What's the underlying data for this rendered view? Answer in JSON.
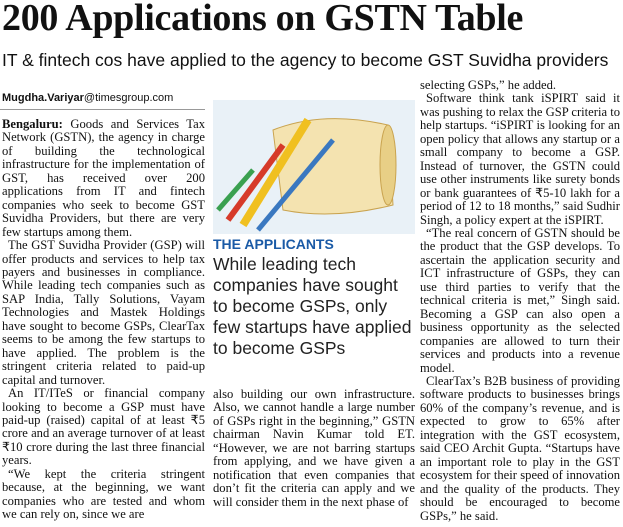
{
  "headline": "200 Applications on GSTN Table",
  "subheadline": "IT & fintech cos have applied to the agency to become GST Suvidha providers",
  "byline": {
    "name": "Mugdha.Variyar",
    "domain": "@timesgroup.com"
  },
  "dateline": "Bengaluru:",
  "columns": [
    [
      "Goods and Services Tax Network (GSTN), the agency in charge of building the technological infrastructure for the implementation of GST, has received over 200 applications from IT and fintech companies who seek to become GST Suvidha Providers, but there are very few startups among them.",
      "The GST Suvidha Provider (GSP) will offer products and services to help tax payers and businesses in compliance. While leading tech companies such as SAP India, Tally Solutions, Vayam Technologies and Mastek Holdings have sought to become GSPs, ClearTax seems to be among the few startups to have applied. The problem is the stringent criteria related to paid-up capital and turnover.",
      "An IT/ITeS or financial company looking to become a GSP must have paid-up (raised) capital of at least ₹5 crore and an average turnover of at least ₹10 crore during the last three financial years.",
      "“We kept the criteria stringent because, at the beginning, we want companies who are tested and whom we can rely on, since we are"
    ],
    [
      "also building our own infrastructure. Also, we cannot handle a large number of GSPs right in the beginning,” GSTN chairman Navin Kumar told ET. “However, we are not barring startups from applying, and we have given a notification that even companies that don’t fit the criteria can apply and we will consider them in the next phase of"
    ],
    [
      "selecting GSPs,” he added.",
      "Software think tank iSPIRT said it was pushing to relax the GSP criteria to help startups. “iSPIRT is looking for an open policy that allows any startup or a small company to become a GSP. Instead of turnover, the GSTN could use other instruments like surety bonds or bank guarantees of ₹5-10 lakh for a period of 12 to 18 months,” said Sudhir Singh, a policy expert at the iSPIRT.",
      "“The real concern of GSTN should be the product that the GSP develops. To ascertain the application security and ICT infrastructure of GSPs, they can use third parties to verify that the technical criteria is met,” Singh said. Becoming a GSP can also open a business opportunity as the selected companies are allowed to turn their services and products into a revenue model.",
      "ClearTax’s B2B business of providing software products to businesses brings 60% of the company’s revenue, and is expected to grow to 65% after integration with the GST ecosystem, said CEO Archit Gupta. “Startups have an important role to play in the GST ecosystem for their speed of innovation and the quality of the products. They should be encouraged to become GSPs,” he said."
    ]
  ],
  "box": {
    "label": "THE APPLICANTS",
    "quote": "While leading tech companies have sought to become GSPs, only few startups have applied to become GSPs"
  }
}
